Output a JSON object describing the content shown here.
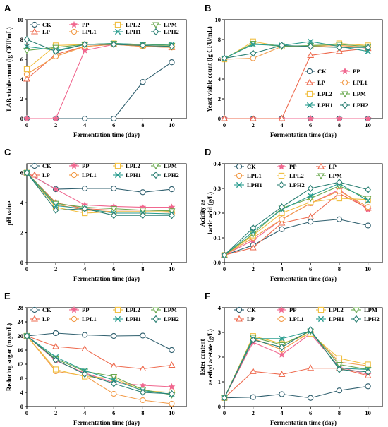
{
  "chart_data": [
    {
      "panel": "A",
      "type": "line",
      "x": [
        0,
        2,
        4,
        6,
        8,
        10
      ],
      "xlabel": "Fermentation time (day)",
      "ylabel": "LAB viable count (lg CFU/mL)",
      "xlim": [
        0,
        11
      ],
      "ylim": [
        0,
        10
      ],
      "xticks": [
        0,
        2,
        4,
        6,
        8,
        10
      ],
      "yticks": [
        0,
        2,
        4,
        6,
        8,
        10
      ],
      "legend_cols": 4,
      "legend_order": [
        "CK",
        "PP",
        "LPL2",
        "LPM",
        "LP",
        "LPL1",
        "LPH1",
        "LPH2"
      ],
      "series": [
        {
          "name": "CK",
          "values": [
            0,
            0,
            0,
            0,
            3.7,
            5.7
          ]
        },
        {
          "name": "PP",
          "values": [
            0,
            0,
            6.9,
            7.5,
            7.3,
            7.2
          ]
        },
        {
          "name": "LP",
          "values": [
            4.0,
            6.5,
            7.3,
            7.5,
            7.4,
            7.2
          ]
        },
        {
          "name": "LPL1",
          "values": [
            4.5,
            6.3,
            7.3,
            7.5,
            7.3,
            7.2
          ]
        },
        {
          "name": "LPL2",
          "values": [
            5.0,
            7.4,
            7.5,
            7.6,
            7.4,
            7.3
          ]
        },
        {
          "name": "LPM",
          "values": [
            6.9,
            7.2,
            7.5,
            7.6,
            7.5,
            7.4
          ]
        },
        {
          "name": "LPH1",
          "values": [
            7.3,
            6.9,
            7.5,
            7.6,
            7.5,
            7.5
          ]
        },
        {
          "name": "LPH2",
          "values": [
            8.0,
            6.8,
            7.5,
            7.5,
            7.4,
            7.3
          ]
        }
      ]
    },
    {
      "panel": "B",
      "type": "line",
      "x": [
        0,
        2,
        4,
        6,
        8,
        10
      ],
      "xlabel": "Fermentation time (day)",
      "ylabel": "Yeast viable count (lg CFU/mL)",
      "xlim": [
        0,
        11
      ],
      "ylim": [
        0,
        10
      ],
      "xticks": [
        0,
        2,
        4,
        6,
        8,
        10
      ],
      "yticks": [
        0,
        2,
        4,
        6,
        8,
        10
      ],
      "legend_cols": 2,
      "legend_order": [
        "CK",
        "PP",
        "LP",
        "LPL1",
        "LPL2",
        "LPM",
        "LPH1",
        "LPH2"
      ],
      "series": [
        {
          "name": "CK",
          "values": [
            0,
            0,
            0,
            0,
            0,
            0
          ]
        },
        {
          "name": "PP",
          "values": [
            0,
            0,
            0,
            0,
            0,
            0
          ]
        },
        {
          "name": "LP",
          "values": [
            0,
            0,
            0,
            6.4,
            6.8,
            7.1
          ]
        },
        {
          "name": "LPL1",
          "values": [
            6.0,
            6.1,
            7.3,
            7.3,
            7.4,
            7.2
          ]
        },
        {
          "name": "LPL2",
          "values": [
            6.0,
            7.8,
            7.3,
            7.3,
            7.6,
            7.4
          ]
        },
        {
          "name": "LPM",
          "values": [
            6.1,
            7.6,
            7.3,
            7.4,
            7.5,
            7.3
          ]
        },
        {
          "name": "LPH1",
          "values": [
            6.1,
            7.5,
            7.4,
            7.8,
            7.3,
            6.8
          ]
        },
        {
          "name": "LPH2",
          "values": [
            6.1,
            6.6,
            7.4,
            7.3,
            7.2,
            7.2
          ]
        }
      ]
    },
    {
      "panel": "C",
      "type": "line",
      "x": [
        0,
        2,
        4,
        6,
        8,
        10
      ],
      "xlabel": "Fermentation time (day)",
      "ylabel": "pH value",
      "xlim": [
        0,
        11
      ],
      "ylim": [
        0,
        6.6
      ],
      "xticks": [
        0,
        2,
        4,
        6,
        8,
        10
      ],
      "yticks": [
        0,
        2,
        4,
        6
      ],
      "legend_cols": 4,
      "legend_order": [
        "CK",
        "PP",
        "LPL2",
        "LPM",
        "LP",
        "LPL1",
        "LPH1",
        "LPH2"
      ],
      "series": [
        {
          "name": "CK",
          "values": [
            6.0,
            4.9,
            4.95,
            4.95,
            4.7,
            4.9
          ]
        },
        {
          "name": "PP",
          "values": [
            6.0,
            4.9,
            3.85,
            3.75,
            3.7,
            3.7
          ]
        },
        {
          "name": "LP",
          "values": [
            6.0,
            4.0,
            3.6,
            3.5,
            3.5,
            3.45
          ]
        },
        {
          "name": "LPL1",
          "values": [
            6.0,
            3.9,
            3.5,
            3.4,
            3.4,
            3.35
          ]
        },
        {
          "name": "LPL2",
          "values": [
            6.0,
            3.7,
            3.3,
            3.4,
            3.4,
            3.4
          ]
        },
        {
          "name": "LPM",
          "values": [
            6.0,
            3.95,
            3.7,
            3.6,
            3.5,
            3.45
          ]
        },
        {
          "name": "LPH1",
          "values": [
            6.0,
            3.8,
            3.6,
            3.3,
            3.3,
            3.25
          ]
        },
        {
          "name": "LPH2",
          "values": [
            6.0,
            3.5,
            3.6,
            3.15,
            3.15,
            3.15
          ]
        }
      ]
    },
    {
      "panel": "D",
      "type": "line",
      "x": [
        0,
        2,
        4,
        6,
        8,
        10
      ],
      "xlabel": "Fermentation time (day)",
      "ylabel": "Acidity as lactic acid (g/L)",
      "xlim": [
        0,
        11
      ],
      "ylim": [
        0,
        0.4
      ],
      "xticks": [
        0,
        2,
        4,
        6,
        8,
        10
      ],
      "yticks": [
        0.0,
        0.1,
        0.2,
        0.3,
        0.4
      ],
      "legend_cols": 3,
      "legend_order": [
        "CK",
        "PP",
        "LP",
        "LPL1",
        "LPL2",
        "LPM",
        "LPH1",
        "LPH2"
      ],
      "series": [
        {
          "name": "CK",
          "values": [
            0.03,
            0.07,
            0.135,
            0.165,
            0.175,
            0.15
          ]
        },
        {
          "name": "PP",
          "values": [
            0.03,
            0.09,
            0.175,
            0.24,
            0.295,
            0.215
          ]
        },
        {
          "name": "LP",
          "values": [
            0.03,
            0.06,
            0.16,
            0.185,
            0.28,
            0.22
          ]
        },
        {
          "name": "LPL1",
          "values": [
            0.03,
            0.1,
            0.175,
            0.24,
            0.29,
            0.225
          ]
        },
        {
          "name": "LPL2",
          "values": [
            0.03,
            0.11,
            0.2,
            0.245,
            0.26,
            0.255
          ]
        },
        {
          "name": "LPM",
          "values": [
            0.03,
            0.115,
            0.22,
            0.26,
            0.31,
            0.26
          ]
        },
        {
          "name": "LPH1",
          "values": [
            0.03,
            0.125,
            0.215,
            0.27,
            0.32,
            0.25
          ]
        },
        {
          "name": "LPH2",
          "values": [
            0.03,
            0.14,
            0.225,
            0.3,
            0.325,
            0.295
          ]
        }
      ]
    },
    {
      "panel": "E",
      "type": "line",
      "x": [
        0,
        2,
        4,
        6,
        8,
        10
      ],
      "xlabel": "Fermentation time (day)",
      "ylabel": "Reducing sugar (mg/mL)",
      "xlim": [
        0,
        11
      ],
      "ylim": [
        0,
        28
      ],
      "xticks": [
        0,
        2,
        4,
        6,
        8,
        10
      ],
      "yticks": [
        0,
        4,
        8,
        12,
        16,
        20,
        24,
        28
      ],
      "legend_cols": 4,
      "legend_order": [
        "CK",
        "PP",
        "LPL2",
        "LPM",
        "LP",
        "LPL1",
        "LPH1",
        "LPH2"
      ],
      "series": [
        {
          "name": "CK",
          "values": [
            20.0,
            20.8,
            20.3,
            20.0,
            20.1,
            16.0
          ]
        },
        {
          "name": "PP",
          "values": [
            20.0,
            13.0,
            9.5,
            6.8,
            6.0,
            5.6
          ]
        },
        {
          "name": "LP",
          "values": [
            20.0,
            17.0,
            16.3,
            11.5,
            10.7,
            11.7
          ]
        },
        {
          "name": "LPL1",
          "values": [
            20.0,
            10.0,
            8.7,
            3.6,
            1.8,
            0.8
          ]
        },
        {
          "name": "LPL2",
          "values": [
            20.0,
            10.5,
            8.5,
            8.0,
            4.5,
            4.0
          ]
        },
        {
          "name": "LPM",
          "values": [
            20.0,
            13.5,
            10.0,
            8.5,
            4.8,
            3.3
          ]
        },
        {
          "name": "LPH1",
          "values": [
            20.0,
            14.0,
            10.2,
            7.5,
            4.5,
            3.5
          ]
        },
        {
          "name": "LPH2",
          "values": [
            20.0,
            13.2,
            9.2,
            6.5,
            4.0,
            3.6
          ]
        }
      ]
    },
    {
      "panel": "F",
      "type": "line",
      "x": [
        0,
        2,
        4,
        6,
        8,
        10
      ],
      "xlabel": "Fermentation time (day)",
      "ylabel": "Ester content as ethyl acetate (g/L)",
      "xlim": [
        0,
        11
      ],
      "ylim": [
        0,
        4
      ],
      "xticks": [
        0,
        2,
        4,
        6,
        8,
        10
      ],
      "yticks": [
        0,
        1,
        2,
        3,
        4
      ],
      "legend_cols": 4,
      "legend_order": [
        "CK",
        "PP",
        "LPL2",
        "LPM",
        "LP",
        "LPL1",
        "LPH1",
        "LPH2"
      ],
      "series": [
        {
          "name": "CK",
          "values": [
            0.35,
            0.38,
            0.5,
            0.35,
            0.65,
            0.82
          ]
        },
        {
          "name": "PP",
          "values": [
            0.35,
            2.6,
            2.1,
            2.95,
            1.6,
            1.3
          ]
        },
        {
          "name": "LP",
          "values": [
            0.35,
            1.42,
            1.3,
            1.55,
            1.55,
            1.25
          ]
        },
        {
          "name": "LPL1",
          "values": [
            0.35,
            2.75,
            2.3,
            3.0,
            1.8,
            1.65
          ]
        },
        {
          "name": "LPL2",
          "values": [
            0.35,
            2.85,
            2.55,
            2.95,
            1.95,
            1.7
          ]
        },
        {
          "name": "LPM",
          "values": [
            0.35,
            2.8,
            2.5,
            3.05,
            1.7,
            1.5
          ]
        },
        {
          "name": "LPH1",
          "values": [
            0.35,
            2.75,
            2.75,
            3.05,
            1.55,
            1.5
          ]
        },
        {
          "name": "LPH2",
          "values": [
            0.35,
            2.7,
            2.4,
            3.1,
            1.5,
            1.4
          ]
        }
      ]
    }
  ],
  "styles": {
    "CK": {
      "color": "#2f5f6e",
      "marker": "circle"
    },
    "PP": {
      "color": "#f0678f",
      "marker": "star"
    },
    "LP": {
      "color": "#ee6a4e",
      "marker": "triangle-up"
    },
    "LPL1": {
      "color": "#f29b48",
      "marker": "circle"
    },
    "LPL2": {
      "color": "#f0be3f",
      "marker": "square"
    },
    "LPM": {
      "color": "#6aa84f",
      "marker": "triangle-down"
    },
    "LPH1": {
      "color": "#2a9d8f",
      "marker": "x"
    },
    "LPH2": {
      "color": "#2a7f73",
      "marker": "diamond"
    }
  }
}
